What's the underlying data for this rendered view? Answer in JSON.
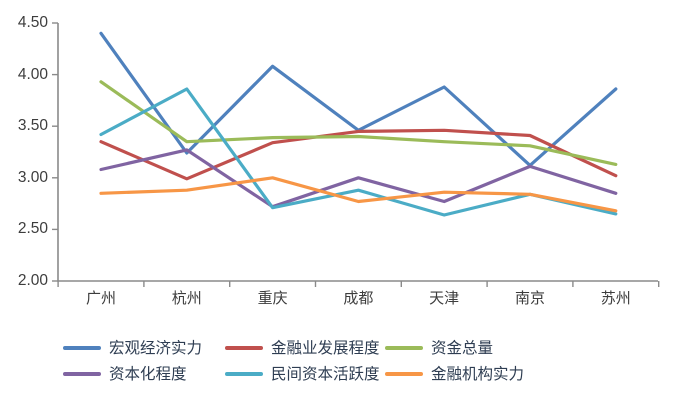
{
  "chart_data": {
    "type": "line",
    "categories": [
      "广州",
      "杭州",
      "重庆",
      "成都",
      "天津",
      "南京",
      "苏州"
    ],
    "series": [
      {
        "name": "宏观经济实力",
        "color": "#4F81BD",
        "values": [
          4.4,
          3.24,
          4.08,
          3.46,
          3.88,
          3.12,
          3.86
        ]
      },
      {
        "name": "金融业发展程度",
        "color": "#C0504D",
        "values": [
          3.35,
          2.99,
          3.34,
          3.45,
          3.46,
          3.41,
          3.02
        ]
      },
      {
        "name": "资金总量",
        "color": "#9BBB59",
        "values": [
          3.93,
          3.35,
          3.39,
          3.4,
          3.35,
          3.31,
          3.13
        ]
      },
      {
        "name": "资本化程度",
        "color": "#8064A2",
        "values": [
          3.08,
          3.27,
          2.72,
          3.0,
          2.77,
          3.11,
          2.85
        ]
      },
      {
        "name": "民间资本活跃度",
        "color": "#4BACC6",
        "values": [
          3.42,
          3.86,
          2.71,
          2.88,
          2.64,
          2.84,
          2.65
        ]
      },
      {
        "name": "金融机构实力",
        "color": "#F79646",
        "values": [
          2.85,
          2.88,
          3.0,
          2.77,
          2.86,
          2.84,
          2.68
        ]
      }
    ],
    "y_ticks": [
      "4.50",
      "4.00",
      "3.50",
      "3.00",
      "2.50",
      "2.00"
    ],
    "ylim": [
      2.0,
      4.5
    ],
    "grid": false,
    "legend_position": "bottom",
    "axis_color": "#8a8a8a",
    "tick_label_color": "#3d3d3d",
    "legend_text_color": "#2e3d52",
    "background_color": "#ffffff"
  }
}
